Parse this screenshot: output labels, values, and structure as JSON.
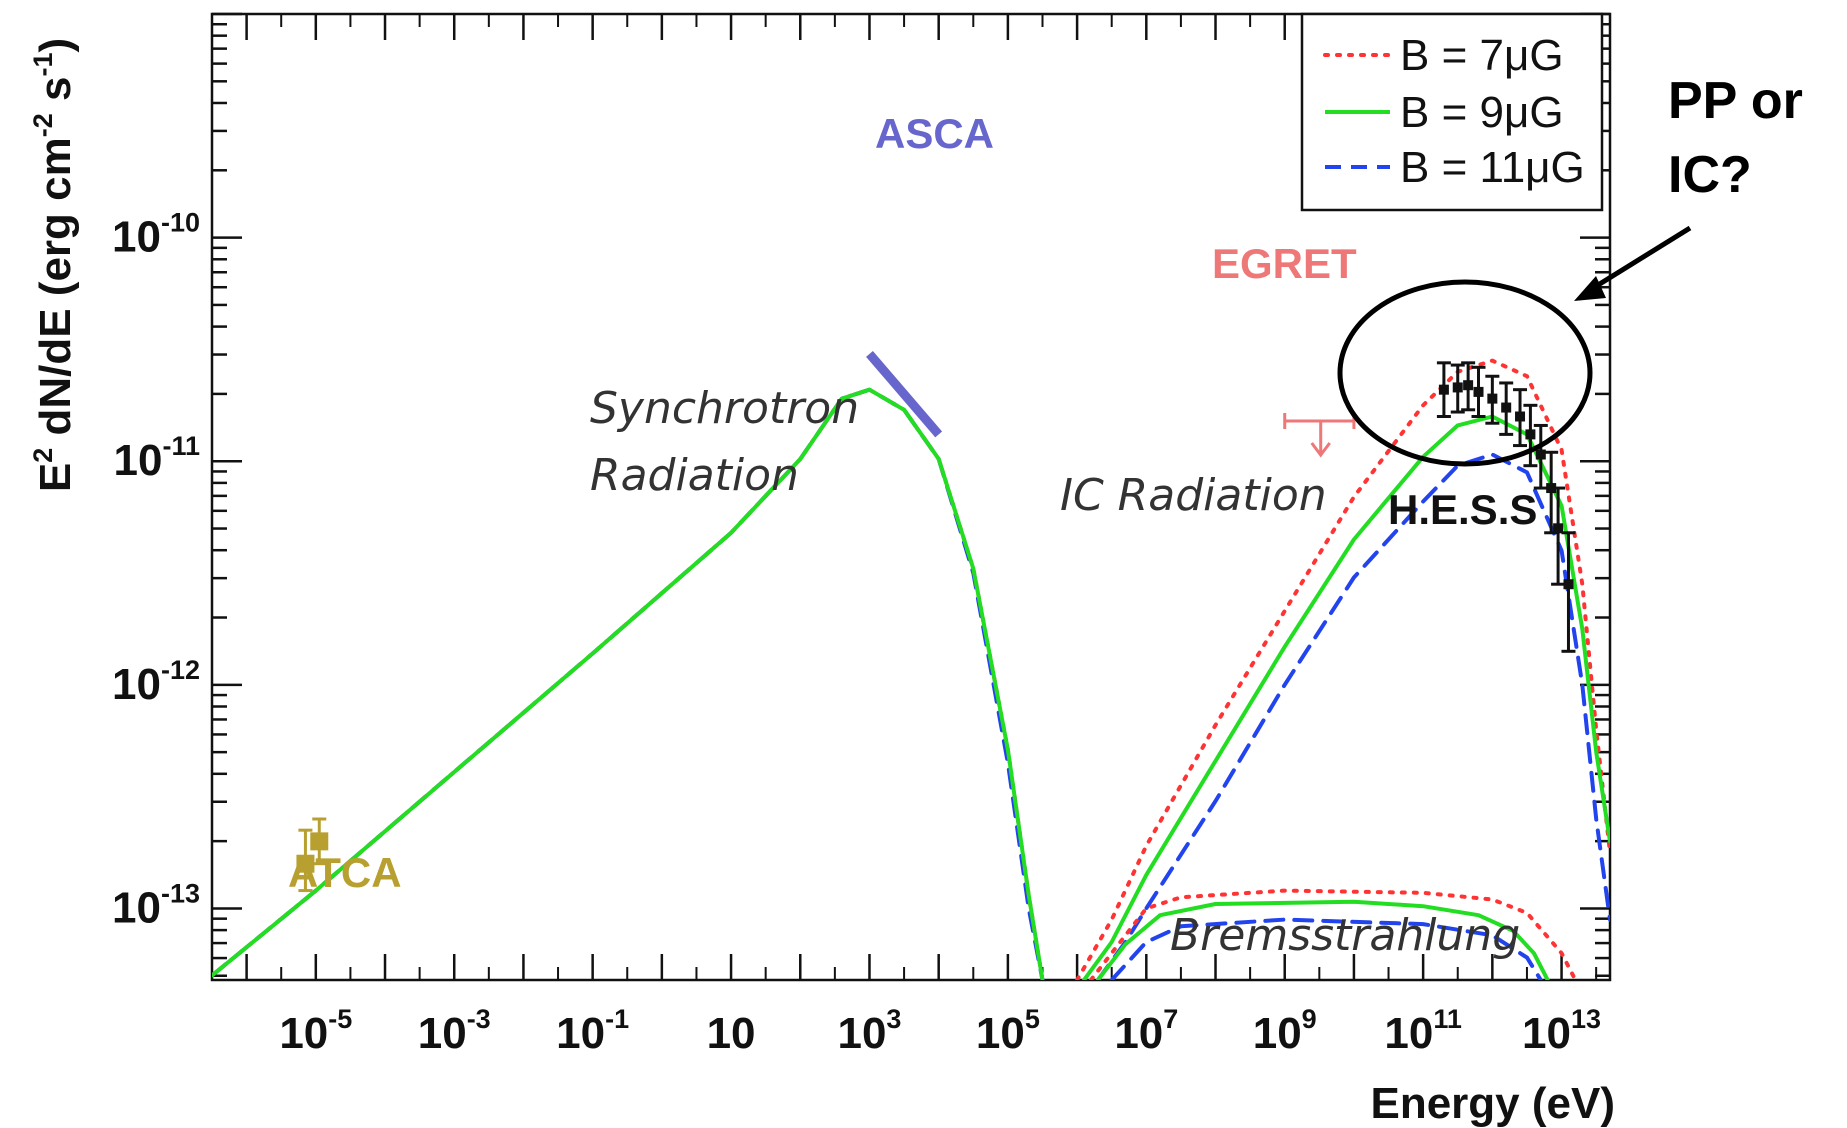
{
  "chart_data": {
    "type": "line",
    "xlabel": "Energy (eV)",
    "ylabel": "E",
    "ylabel_sup": "2",
    "ylabel_rest": " dN/dE (erg cm",
    "ylabel_unit_sup1": "-2",
    "ylabel_mid": " s",
    "ylabel_unit_sup2": "-1",
    "ylabel_end": ")",
    "x_log_range": [
      -6.5,
      13.7
    ],
    "y_log_range": [
      -13.32,
      -9.0
    ],
    "x_scale": "log",
    "y_scale": "log",
    "x_ticks": [
      {
        "label_base": "10",
        "label_exp": "-5",
        "log": -5
      },
      {
        "label_base": "10",
        "label_exp": "-3",
        "log": -3
      },
      {
        "label_base": "10",
        "label_exp": "-1",
        "log": -1
      },
      {
        "label_base": "10",
        "label_exp": "",
        "log": 1
      },
      {
        "label_base": "10",
        "label_exp": "3",
        "log": 3
      },
      {
        "label_base": "10",
        "label_exp": "5",
        "log": 5
      },
      {
        "label_base": "10",
        "label_exp": "7",
        "log": 7
      },
      {
        "label_base": "10",
        "label_exp": "9",
        "log": 9
      },
      {
        "label_base": "10",
        "label_exp": "11",
        "log": 11
      },
      {
        "label_base": "10",
        "label_exp": "13",
        "log": 13
      }
    ],
    "y_ticks": [
      {
        "label_base": "10",
        "label_exp": "-10",
        "log": -10
      },
      {
        "label_base": "10",
        "label_exp": "-11",
        "log": -11
      },
      {
        "label_base": "10",
        "label_exp": "-12",
        "log": -12
      },
      {
        "label_base": "10",
        "label_exp": "-13",
        "log": -13
      }
    ],
    "grid": false,
    "legend_position": "top-right",
    "series": [
      {
        "name": "B = 7μG",
        "color": "#ff3333",
        "style": "dotted",
        "components": {
          "synchrotron": [
            [
              -6.5,
              -13.3
            ],
            [
              -5,
              -12.92
            ],
            [
              -3,
              -12.39
            ],
            [
              -1,
              -11.86
            ],
            [
              1,
              -11.32
            ],
            [
              2,
              -10.99
            ],
            [
              2.6,
              -10.72
            ],
            [
              3,
              -10.68
            ],
            [
              3.5,
              -10.77
            ],
            [
              4,
              -10.99
            ],
            [
              4.5,
              -11.48
            ],
            [
              5,
              -12.29
            ],
            [
              5.3,
              -12.94
            ],
            [
              5.5,
              -13.32
            ]
          ],
          "ic": [
            [
              6.0,
              -13.32
            ],
            [
              6.5,
              -13.05
            ],
            [
              7,
              -12.72
            ],
            [
              8,
              -12.18
            ],
            [
              9,
              -11.67
            ],
            [
              10,
              -11.16
            ],
            [
              11,
              -10.75
            ],
            [
              11.5,
              -10.6
            ],
            [
              12,
              -10.55
            ],
            [
              12.5,
              -10.62
            ],
            [
              13,
              -10.95
            ],
            [
              13.3,
              -11.55
            ],
            [
              13.5,
              -12.2
            ],
            [
              13.7,
              -12.75
            ]
          ],
          "bremsstrahlung": [
            [
              6.2,
              -13.32
            ],
            [
              6.6,
              -13.16
            ],
            [
              7,
              -13.0
            ],
            [
              7.5,
              -12.95
            ],
            [
              9,
              -12.92
            ],
            [
              11,
              -12.93
            ],
            [
              12,
              -12.96
            ],
            [
              12.5,
              -13.02
            ],
            [
              13,
              -13.2
            ],
            [
              13.2,
              -13.32
            ]
          ]
        }
      },
      {
        "name": "B = 9μG",
        "color": "#22dd22",
        "style": "solid",
        "components": {
          "synchrotron": [
            [
              -6.5,
              -13.3
            ],
            [
              -5,
              -12.92
            ],
            [
              -3,
              -12.39
            ],
            [
              -1,
              -11.86
            ],
            [
              1,
              -11.32
            ],
            [
              2,
              -10.99
            ],
            [
              2.6,
              -10.72
            ],
            [
              3,
              -10.68
            ],
            [
              3.5,
              -10.77
            ],
            [
              4,
              -10.99
            ],
            [
              4.5,
              -11.48
            ],
            [
              5,
              -12.29
            ],
            [
              5.3,
              -12.94
            ],
            [
              5.5,
              -13.32
            ]
          ],
          "ic": [
            [
              6.1,
              -13.32
            ],
            [
              6.5,
              -13.15
            ],
            [
              7,
              -12.85
            ],
            [
              8,
              -12.34
            ],
            [
              9,
              -11.83
            ],
            [
              10,
              -11.35
            ],
            [
              11,
              -10.98
            ],
            [
              11.5,
              -10.84
            ],
            [
              12,
              -10.8
            ],
            [
              12.5,
              -10.88
            ],
            [
              13,
              -11.2
            ],
            [
              13.3,
              -11.75
            ],
            [
              13.5,
              -12.3
            ],
            [
              13.7,
              -12.7
            ]
          ],
          "bremsstrahlung": [
            [
              6.3,
              -13.32
            ],
            [
              6.7,
              -13.16
            ],
            [
              7.2,
              -13.03
            ],
            [
              8,
              -12.98
            ],
            [
              10,
              -12.97
            ],
            [
              11,
              -12.99
            ],
            [
              11.8,
              -13.03
            ],
            [
              12.3,
              -13.1
            ],
            [
              12.6,
              -13.2
            ],
            [
              12.8,
              -13.32
            ]
          ]
        }
      },
      {
        "name": "B = 11μG",
        "color": "#2244ee",
        "style": "dashed",
        "components": {
          "synchrotron": [
            [
              -6.5,
              -13.3
            ],
            [
              -5,
              -12.92
            ],
            [
              -3,
              -12.39
            ],
            [
              -1,
              -11.86
            ],
            [
              1,
              -11.32
            ],
            [
              2,
              -10.99
            ],
            [
              2.6,
              -10.72
            ],
            [
              3,
              -10.68
            ],
            [
              3.5,
              -10.77
            ],
            [
              4,
              -10.99
            ],
            [
              4.5,
              -11.5
            ],
            [
              5,
              -12.35
            ],
            [
              5.3,
              -13.0
            ],
            [
              5.5,
              -13.32
            ]
          ],
          "ic": [
            [
              6.3,
              -13.32
            ],
            [
              6.7,
              -13.15
            ],
            [
              7,
              -13.0
            ],
            [
              8,
              -12.52
            ],
            [
              9,
              -12.0
            ],
            [
              10,
              -11.52
            ],
            [
              11,
              -11.18
            ],
            [
              11.5,
              -11.02
            ],
            [
              12,
              -10.97
            ],
            [
              12.5,
              -11.05
            ],
            [
              13,
              -11.4
            ],
            [
              13.3,
              -12.0
            ],
            [
              13.5,
              -12.6
            ],
            [
              13.7,
              -13.05
            ]
          ],
          "bremsstrahlung": [
            [
              6.5,
              -13.32
            ],
            [
              7,
              -13.15
            ],
            [
              7.5,
              -13.08
            ],
            [
              9,
              -13.05
            ],
            [
              11,
              -13.07
            ],
            [
              12,
              -13.12
            ],
            [
              12.5,
              -13.22
            ],
            [
              12.7,
              -13.32
            ]
          ]
        }
      }
    ],
    "data_sets": [
      {
        "name": "ATCA",
        "color": "#b8a030",
        "points": [
          {
            "x": -5.15,
            "y": -12.8,
            "yerr_lo": -12.92,
            "yerr_hi": -12.65
          },
          {
            "x": -4.95,
            "y": -12.7,
            "yerr_lo": -12.8,
            "yerr_hi": -12.6
          }
        ]
      },
      {
        "name": "ASCA",
        "color": "#6666cc",
        "segment": [
          [
            3.0,
            -10.52
          ],
          [
            4.0,
            -10.88
          ]
        ]
      },
      {
        "name": "EGRET",
        "color": "#ee7777",
        "upper_limit": {
          "x": 9.52,
          "x_lo": 9.0,
          "x_hi": 10.0,
          "y": -10.82
        }
      },
      {
        "name": "H.E.S.S",
        "color": "#111111",
        "points": [
          {
            "x": 11.3,
            "y": -10.68,
            "yerr_lo": -10.8,
            "yerr_hi": -10.56
          },
          {
            "x": 11.5,
            "y": -10.67,
            "yerr_lo": -10.78,
            "yerr_hi": -10.57
          },
          {
            "x": 11.65,
            "y": -10.66,
            "yerr_lo": -10.77,
            "yerr_hi": -10.56
          },
          {
            "x": 11.8,
            "y": -10.69,
            "yerr_lo": -10.8,
            "yerr_hi": -10.58
          },
          {
            "x": 12.0,
            "y": -10.72,
            "yerr_lo": -10.83,
            "yerr_hi": -10.62
          },
          {
            "x": 12.2,
            "y": -10.76,
            "yerr_lo": -10.88,
            "yerr_hi": -10.65
          },
          {
            "x": 12.4,
            "y": -10.8,
            "yerr_lo": -10.93,
            "yerr_hi": -10.68
          },
          {
            "x": 12.55,
            "y": -10.88,
            "yerr_lo": -11.02,
            "yerr_hi": -10.75
          },
          {
            "x": 12.7,
            "y": -10.97,
            "yerr_lo": -11.12,
            "yerr_hi": -10.84
          },
          {
            "x": 12.85,
            "y": -11.12,
            "yerr_lo": -11.32,
            "yerr_hi": -10.96
          },
          {
            "x": 12.95,
            "y": -11.3,
            "yerr_lo": -11.55,
            "yerr_hi": -11.12
          },
          {
            "x": 13.1,
            "y": -11.55,
            "yerr_lo": -11.85,
            "yerr_hi": -11.32
          }
        ]
      }
    ],
    "annotations": [
      {
        "text_lines": [
          "Synchrotron",
          "Radiation"
        ],
        "x": -0.3,
        "y": -10.92,
        "style": "italic"
      },
      {
        "text_lines": [
          "IC Radiation"
        ],
        "x": 8.5,
        "y": -11.15,
        "style": "italic"
      },
      {
        "text_lines": [
          "Bremsstrahlung"
        ],
        "x": 9.3,
        "y": -13.14,
        "style": "italic"
      },
      {
        "text_lines": [
          "PP or",
          "IC?"
        ],
        "callout": true
      }
    ]
  }
}
